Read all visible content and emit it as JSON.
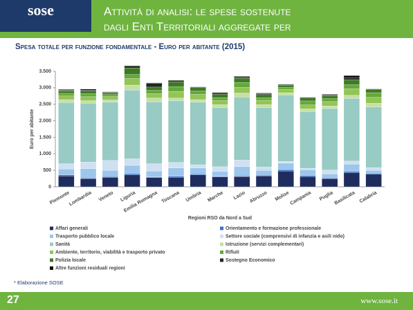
{
  "header": {
    "logo": "sose",
    "title": "Attività di analisi: le spese sostenute dagli Enti Territoriali aggregate per regione"
  },
  "subtitle": "Spesa totale per funzione fondamentale - Euro per abitante (2015)",
  "chart_data": {
    "type": "stacked-bar",
    "y_label": "Euro per abitante",
    "x_label": "Regioni RSO da Nord a Sud",
    "categories": [
      "Piemonte",
      "Lombardia",
      "Veneto",
      "Liguria",
      "Emilia Romagna",
      "Toscana",
      "Umbria",
      "Marche",
      "Lazio",
      "Abruzzo",
      "Molise",
      "Campania",
      "Puglia",
      "Basilicata",
      "Calabria"
    ],
    "ylim": [
      0,
      3500
    ],
    "yticks": [
      0,
      {
        "value": 500,
        "label": "500"
      },
      {
        "value": 1000,
        "label": "1.000"
      },
      {
        "value": 1500,
        "label": "1.500"
      },
      {
        "value": 2000,
        "label": "2.000"
      },
      {
        "value": 2500,
        "label": "2.500"
      },
      {
        "value": 3000,
        "label": "3.000"
      },
      {
        "value": 3500,
        "label": "3.500"
      }
    ],
    "series": [
      {
        "name": "Affari generali",
        "color": "#1f2d5e",
        "values": [
          330,
          250,
          290,
          360,
          280,
          290,
          360,
          300,
          310,
          330,
          480,
          310,
          250,
          430,
          380
        ]
      },
      {
        "name": "Orientamento e formazione professionale",
        "color": "#3b6fc6",
        "values": [
          30,
          20,
          20,
          40,
          20,
          30,
          30,
          20,
          20,
          20,
          40,
          30,
          20,
          40,
          30
        ]
      },
      {
        "name": "Trasporto pubblico locale",
        "color": "#9cc6ec",
        "values": [
          180,
          280,
          190,
          250,
          180,
          250,
          180,
          150,
          280,
          150,
          200,
          180,
          120,
          220,
          90
        ]
      },
      {
        "name": "Settore sociale (comprensivi di infanzia e asili nido)",
        "color": "#cfe0f2",
        "values": [
          160,
          200,
          300,
          200,
          220,
          170,
          100,
          140,
          200,
          100,
          50,
          40,
          120,
          90,
          80
        ]
      },
      {
        "name": "Sanità",
        "color": "#97cbc3",
        "values": [
          1850,
          1780,
          1760,
          2080,
          1870,
          1870,
          1890,
          1790,
          1910,
          1800,
          2010,
          1720,
          1860,
          1900,
          1840
        ]
      },
      {
        "name": "Istruzione (servizi complementari)",
        "color": "#c6e0a4",
        "values": [
          90,
          80,
          70,
          150,
          120,
          80,
          80,
          90,
          120,
          90,
          70,
          80,
          80,
          90,
          110
        ]
      },
      {
        "name": "Ambiente, territorio, viabilità e trasporto privato",
        "color": "#93c456",
        "values": [
          110,
          120,
          100,
          200,
          130,
          200,
          160,
          120,
          170,
          130,
          100,
          120,
          130,
          200,
          180
        ]
      },
      {
        "name": "Rifiuti",
        "color": "#64a83a",
        "values": [
          80,
          90,
          60,
          120,
          100,
          140,
          100,
          90,
          150,
          80,
          60,
          120,
          90,
          120,
          140
        ]
      },
      {
        "name": "Polizia locale",
        "color": "#3d7b22",
        "values": [
          80,
          80,
          60,
          200,
          100,
          150,
          100,
          100,
          130,
          90,
          60,
          90,
          90,
          150,
          90
        ]
      },
      {
        "name": "Sostegno Economico",
        "color": "#1c2a1c",
        "values": [
          20,
          30,
          20,
          50,
          110,
          30,
          20,
          40,
          40,
          30,
          30,
          20,
          20,
          60,
          20
        ]
      },
      {
        "name": "Altre funzioni residuali regioni",
        "color": "#0d0d0d",
        "values": [
          20,
          30,
          10,
          20,
          20,
          20,
          10,
          20,
          20,
          20,
          10,
          10,
          20,
          70,
          10
        ]
      }
    ]
  },
  "footnote": "* Elaborazione SOSE",
  "footer": {
    "page": "27",
    "url": "www.sose.it"
  }
}
